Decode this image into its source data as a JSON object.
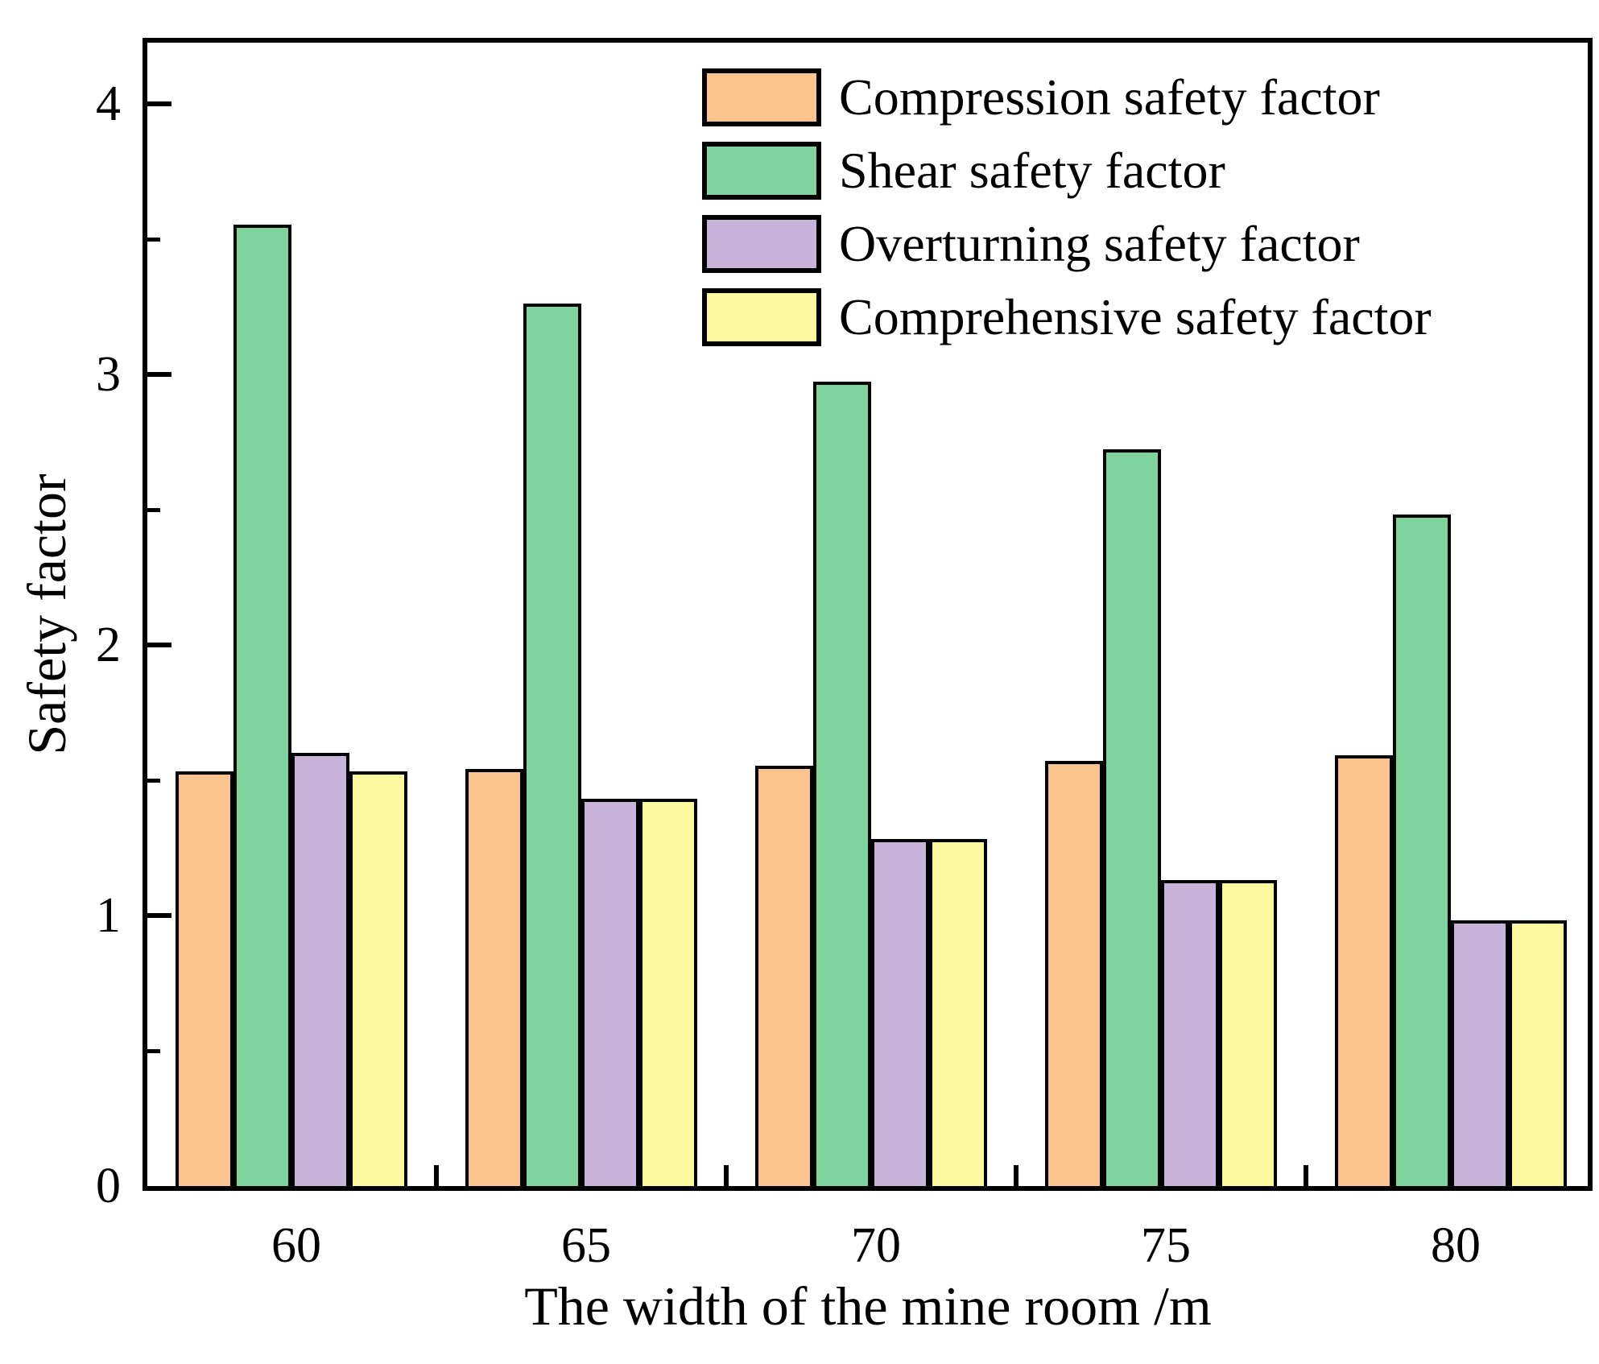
{
  "chart_data": {
    "type": "bar",
    "title": "",
    "xlabel": "The width of the mine room /m",
    "ylabel": "Safety factor",
    "categories": [
      "60",
      "65",
      "70",
      "75",
      "80"
    ],
    "series": [
      {
        "name": "Compression safety factor",
        "color": "#FBC48E",
        "values": [
          1.55,
          1.56,
          1.57,
          1.59,
          1.61
        ]
      },
      {
        "name": "Shear safety factor",
        "color": "#7FD49D",
        "values": [
          3.57,
          3.28,
          2.99,
          2.74,
          2.5
        ]
      },
      {
        "name": "Overturning safety factor",
        "color": "#C8B4D8",
        "values": [
          1.62,
          1.45,
          1.3,
          1.15,
          1.0
        ]
      },
      {
        "name": "Comprehensive safety factor",
        "color": "#FCFA9F",
        "values": [
          1.55,
          1.45,
          1.3,
          1.15,
          1.0
        ]
      }
    ],
    "ylim": [
      0,
      4.26
    ],
    "yticks_major": [
      0,
      1,
      2,
      3,
      4
    ],
    "yticks_minor": [
      0.5,
      1.5,
      2.5,
      3.5
    ],
    "grid": false,
    "legend_position": "upper center, inside plot",
    "bar_border_color": "#000000",
    "axis_color": "#000000",
    "background_color": "#FFFFFF"
  },
  "layout_note": "grouped vertical bars, 4 series per category, inward axis ticks, boxed plot frame"
}
